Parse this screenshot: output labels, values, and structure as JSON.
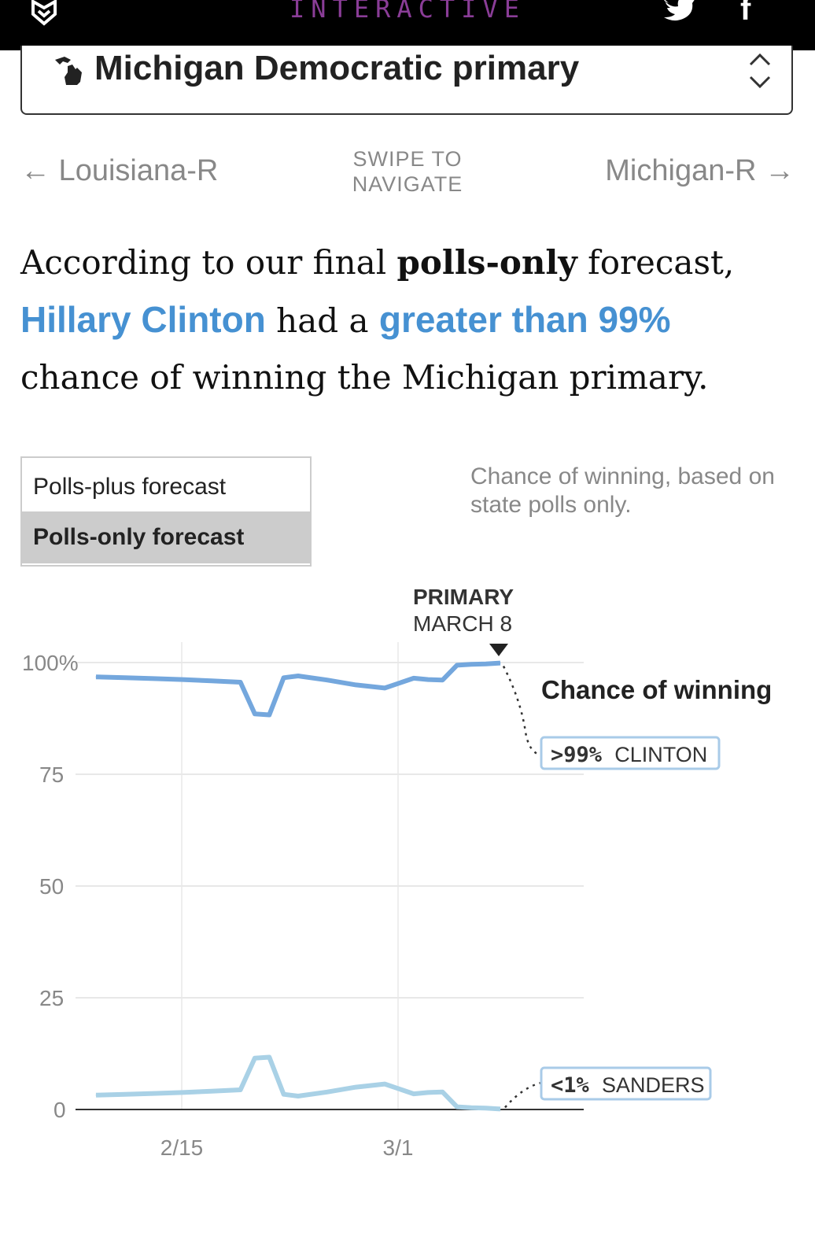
{
  "header": {
    "brand": "INTERACTIVE",
    "colors": {
      "background": "#000000",
      "brand": "#8a3d97",
      "icons": "#ffffff"
    },
    "icons": [
      "fivethirtyeight-logo-icon",
      "twitter-icon",
      "facebook-icon"
    ],
    "facebook_glyph": "f"
  },
  "race_select": {
    "label": "Michigan Democratic primary",
    "icons": [
      "michigan-state-icon",
      "updown-chevron-icon"
    ]
  },
  "navigation": {
    "prev": "← Louisiana-R",
    "swipe_line1": "SWIPE TO",
    "swipe_line2": "NAVIGATE",
    "next": "Michigan-R →"
  },
  "headline": {
    "part1": "According to our final ",
    "part2_bold": "polls-only",
    "part3": " forecast,",
    "candidate": "Hillary Clinton",
    "part4": " had a ",
    "chance": "greater than 99%",
    "part5": "chance of winning the Michigan primary.",
    "highlight_color": "#4691d2"
  },
  "forecast_toggle": {
    "options": [
      "Polls-plus forecast",
      "Polls-only forecast"
    ],
    "selected": "Polls-only forecast",
    "description": "Chance of winning, based on state polls only."
  },
  "chart_data": {
    "type": "line",
    "x_axis": {
      "tick_labels": [
        "2/15",
        "3/1"
      ]
    },
    "y_axis": {
      "tick_labels": [
        "100%",
        "75",
        "50",
        "25",
        "0"
      ],
      "ylim": [
        0,
        100
      ]
    },
    "grid": true,
    "annotation": {
      "line1": "PRIMARY",
      "line2": "MARCH 8"
    },
    "series_heading": "Chance of winning",
    "x_days": [
      0,
      2,
      4,
      6,
      8,
      10,
      11,
      12,
      13,
      14,
      16,
      18,
      20,
      22,
      23,
      24,
      25,
      26,
      27,
      28
    ],
    "series": [
      {
        "name": "CLINTON",
        "final_label_value": ">99%",
        "color": "#74a7dd",
        "values": [
          96.8,
          96.6,
          96.4,
          96.2,
          95.9,
          95.6,
          88.5,
          88.3,
          96.6,
          97.0,
          96.1,
          95.0,
          94.3,
          96.5,
          96.2,
          96.1,
          99.4,
          99.6,
          99.7,
          99.9
        ]
      },
      {
        "name": "SANDERS",
        "final_label_value": "<1%",
        "color": "#a9d1e6",
        "values": [
          3.2,
          3.4,
          3.6,
          3.8,
          4.1,
          4.4,
          11.5,
          11.7,
          3.4,
          3.0,
          3.9,
          5.0,
          5.7,
          3.5,
          3.8,
          3.9,
          0.6,
          0.4,
          0.3,
          0.1
        ]
      }
    ]
  }
}
